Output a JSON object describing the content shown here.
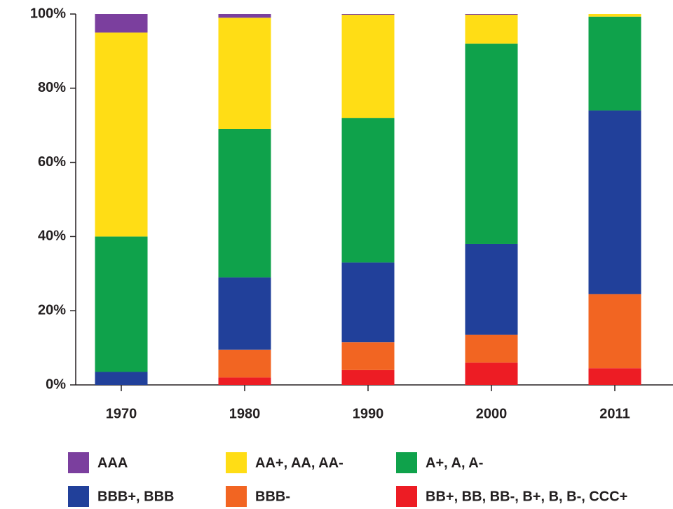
{
  "chart_data": {
    "type": "stacked-bar",
    "categories": [
      "1970",
      "1980",
      "1990",
      "2000",
      "2011"
    ],
    "series": [
      {
        "name": "AAA",
        "color": "#7b3f9e",
        "values": [
          5,
          1,
          0.2,
          0.2,
          0
        ]
      },
      {
        "name": "AA+, AA, AA-",
        "color": "#ffdd15",
        "values": [
          55,
          30,
          27.8,
          7.8,
          0.7
        ]
      },
      {
        "name": "A+, A, A-",
        "color": "#0fa24b",
        "values": [
          36.5,
          40,
          39,
          54,
          25.3
        ]
      },
      {
        "name": "BBB+, BBB",
        "color": "#21409a",
        "values": [
          3.5,
          19.5,
          21.5,
          24.5,
          49.5
        ]
      },
      {
        "name": "BBB-",
        "color": "#f26522",
        "values": [
          0,
          7.5,
          7.5,
          7.5,
          20
        ]
      },
      {
        "name": "BB+, BB, BB-, B+, B, B-, CCC+",
        "color": "#ed1c24",
        "values": [
          0,
          2,
          4,
          6,
          4.5
        ]
      }
    ],
    "ylim": [
      0,
      100
    ],
    "yticks": [
      {
        "value": 0,
        "label": "0%"
      },
      {
        "value": 20,
        "label": "20%"
      },
      {
        "value": 40,
        "label": "40%"
      },
      {
        "value": 60,
        "label": "60%"
      },
      {
        "value": 80,
        "label": "80%"
      },
      {
        "value": 100,
        "label": "100%"
      }
    ]
  }
}
